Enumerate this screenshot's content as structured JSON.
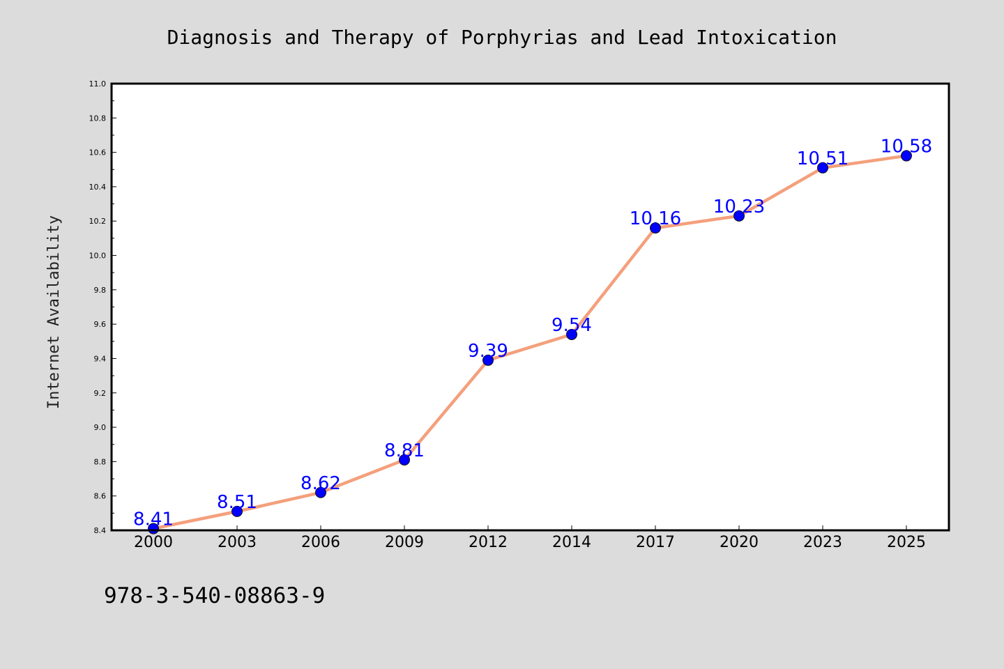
{
  "chart_data": {
    "type": "line",
    "title": "Diagnosis and Therapy of Porphyrias and Lead Intoxication",
    "xlabel": "",
    "ylabel": "Internet Availability",
    "categories": [
      "2000",
      "2003",
      "2006",
      "2009",
      "2012",
      "2014",
      "2017",
      "2020",
      "2023",
      "2025"
    ],
    "series": [
      {
        "values": [
          8.41,
          8.51,
          8.62,
          8.81,
          9.39,
          9.54,
          10.16,
          10.23,
          10.51,
          10.58
        ],
        "labels": [
          "8.41",
          "8.51",
          "8.62",
          "8.81",
          "9.39",
          "9.54",
          "10.16",
          "10.23",
          "10.51",
          "10.58"
        ]
      }
    ],
    "ylim": [
      8.4,
      11.0
    ],
    "yticks": [
      "8.4",
      "8.6",
      "8.8",
      "9.0",
      "9.2",
      "9.4",
      "9.6",
      "9.8",
      "10.0",
      "10.2",
      "10.4",
      "10.6",
      "10.8",
      "11.0"
    ],
    "grid": false,
    "legend": "none",
    "colors": {
      "background": "#dcdcdc",
      "plot_background": "#ffffff",
      "line": "#f4a07c",
      "marker": "#0000ff",
      "data_label": "#0000ff"
    },
    "caption": "978-3-540-08863-9"
  }
}
